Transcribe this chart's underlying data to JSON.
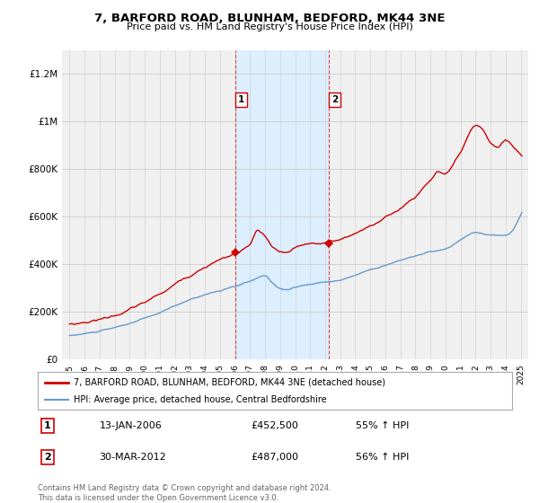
{
  "title": "7, BARFORD ROAD, BLUNHAM, BEDFORD, MK44 3NE",
  "subtitle": "Price paid vs. HM Land Registry's House Price Index (HPI)",
  "legend_line1": "7, BARFORD ROAD, BLUNHAM, BEDFORD, MK44 3NE (detached house)",
  "legend_line2": "HPI: Average price, detached house, Central Bedfordshire",
  "transaction1_date": "13-JAN-2006",
  "transaction1_price": "£452,500",
  "transaction1_change": "55% ↑ HPI",
  "transaction2_date": "30-MAR-2012",
  "transaction2_price": "£487,000",
  "transaction2_change": "56% ↑ HPI",
  "footer": "Contains HM Land Registry data © Crown copyright and database right 2024.\nThis data is licensed under the Open Government Licence v3.0.",
  "house_color": "#cc0000",
  "hpi_color": "#6699cc",
  "highlight_color": "#ddeeff",
  "marker1_x": 2006.04,
  "marker1_y": 452500,
  "marker2_x": 2012.25,
  "marker2_y": 487000,
  "vline1_x": 2006.04,
  "vline2_x": 2012.25,
  "ylim": [
    0,
    1300000
  ],
  "xlim": [
    1994.5,
    2025.5
  ],
  "yticks": [
    0,
    200000,
    400000,
    600000,
    800000,
    1000000,
    1200000
  ],
  "ytick_labels": [
    "£0",
    "£200K",
    "£400K",
    "£600K",
    "£800K",
    "£1M",
    "£1.2M"
  ],
  "background_color": "#ffffff",
  "plot_bg_color": "#f0f0f0"
}
